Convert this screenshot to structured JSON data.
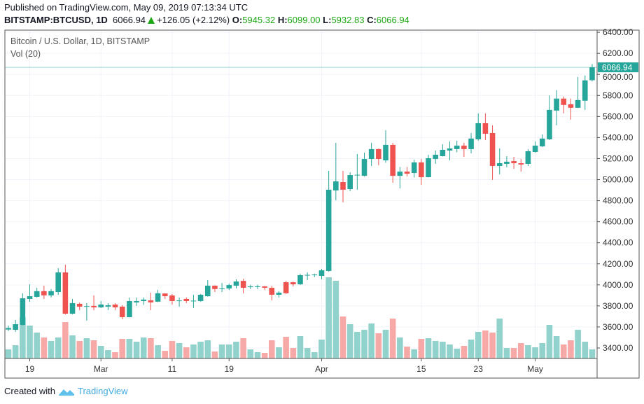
{
  "header": {
    "published": "Published on TradingView.com, May 09, 2019 07:13:34 UTC",
    "symbol": "BITSTAMP:BTCUSD, 1D",
    "last": "6066.94",
    "change": "+126.05 (+2.12%)",
    "o_label": "O:",
    "o": "5945.32",
    "h_label": "H:",
    "h": "6099.00",
    "l_label": "L:",
    "l": "5932.83",
    "c_label": "C:",
    "c": "6066.94"
  },
  "legend": {
    "series": "Bitcoin / U.S. Dollar, 1D, BITSTAMP",
    "volume": "Vol (20)"
  },
  "footer": {
    "created_with": "Created with",
    "brand": "TradingView"
  },
  "colors": {
    "up": "#26a69a",
    "down": "#ef5350",
    "vol_up": "#92d2cc",
    "vol_down": "#f7a9a7",
    "last_price": "#26a69a",
    "grid": "#f0f3fa"
  },
  "chart_data": {
    "type": "candlestick",
    "title": "Bitcoin / U.S. Dollar, 1D, BITSTAMP",
    "ylim": [
      3300,
      6450
    ],
    "grid": true,
    "last_price_label": "6066.94",
    "y_ticks": [
      "6400.00",
      "6200.00",
      "6000.00",
      "5800.00",
      "5600.00",
      "5400.00",
      "5200.00",
      "5000.00",
      "4800.00",
      "4600.00",
      "4400.00",
      "4200.00",
      "4000.00",
      "3800.00",
      "3600.00",
      "3400.00"
    ],
    "x_ticks": [
      {
        "label": "19",
        "date": "2019-02-19"
      },
      {
        "label": "Mar",
        "date": "2019-03-01"
      },
      {
        "label": "11",
        "date": "2019-03-11"
      },
      {
        "label": "19",
        "date": "2019-03-19"
      },
      {
        "label": "Apr",
        "date": "2019-04-01"
      },
      {
        "label": "15",
        "date": "2019-04-15"
      },
      {
        "label": "23",
        "date": "2019-04-23"
      },
      {
        "label": "May",
        "date": "2019-05-01"
      }
    ],
    "dates": [
      "2019-02-16",
      "2019-02-17",
      "2019-02-18",
      "2019-02-19",
      "2019-02-20",
      "2019-02-21",
      "2019-02-22",
      "2019-02-23",
      "2019-02-24",
      "2019-02-25",
      "2019-02-26",
      "2019-02-27",
      "2019-02-28",
      "2019-03-01",
      "2019-03-02",
      "2019-03-03",
      "2019-03-04",
      "2019-03-05",
      "2019-03-06",
      "2019-03-07",
      "2019-03-08",
      "2019-03-09",
      "2019-03-10",
      "2019-03-11",
      "2019-03-12",
      "2019-03-13",
      "2019-03-14",
      "2019-03-15",
      "2019-03-16",
      "2019-03-17",
      "2019-03-18",
      "2019-03-19",
      "2019-03-20",
      "2019-03-21",
      "2019-03-22",
      "2019-03-23",
      "2019-03-24",
      "2019-03-25",
      "2019-03-26",
      "2019-03-27",
      "2019-03-28",
      "2019-03-29",
      "2019-03-30",
      "2019-03-31",
      "2019-04-01",
      "2019-04-02",
      "2019-04-03",
      "2019-04-04",
      "2019-04-05",
      "2019-04-06",
      "2019-04-07",
      "2019-04-08",
      "2019-04-09",
      "2019-04-10",
      "2019-04-11",
      "2019-04-12",
      "2019-04-13",
      "2019-04-14",
      "2019-04-15",
      "2019-04-16",
      "2019-04-17",
      "2019-04-18",
      "2019-04-19",
      "2019-04-20",
      "2019-04-21",
      "2019-04-22",
      "2019-04-23",
      "2019-04-24",
      "2019-04-25",
      "2019-04-26",
      "2019-04-27",
      "2019-04-28",
      "2019-04-29",
      "2019-04-30",
      "2019-05-01",
      "2019-05-02",
      "2019-05-03",
      "2019-05-04",
      "2019-05-05",
      "2019-05-06",
      "2019-05-07",
      "2019-05-08",
      "2019-05-09"
    ],
    "ohlc": [
      [
        3575,
        3613,
        3560,
        3590
      ],
      [
        3573,
        3666,
        3553,
        3626
      ],
      [
        3620,
        3920,
        3615,
        3872
      ],
      [
        3866,
        4005,
        3840,
        3892
      ],
      [
        3886,
        3972,
        3880,
        3940
      ],
      [
        3940,
        3992,
        3866,
        3900
      ],
      [
        3900,
        3960,
        3880,
        3940
      ],
      [
        3932,
        4158,
        3905,
        4118
      ],
      [
        4118,
        4192,
        3719,
        3726
      ],
      [
        3726,
        3866,
        3720,
        3826
      ],
      [
        3820,
        3832,
        3760,
        3793
      ],
      [
        3793,
        3826,
        3660,
        3798
      ],
      [
        3800,
        3900,
        3760,
        3786
      ],
      [
        3786,
        3846,
        3780,
        3813
      ],
      [
        3793,
        3826,
        3760,
        3806
      ],
      [
        3813,
        3826,
        3760,
        3786
      ],
      [
        3793,
        3806,
        3673,
        3693
      ],
      [
        3693,
        3880,
        3690,
        3846
      ],
      [
        3833,
        3880,
        3800,
        3846
      ],
      [
        3846,
        3880,
        3810,
        3860
      ],
      [
        3853,
        3926,
        3760,
        3833
      ],
      [
        3840,
        3952,
        3835,
        3920
      ],
      [
        3918,
        3920,
        3866,
        3892
      ],
      [
        3899,
        3912,
        3812,
        3846
      ],
      [
        3846,
        3880,
        3793,
        3852
      ],
      [
        3866,
        3880,
        3826,
        3846
      ],
      [
        3846,
        3906,
        3780,
        3850
      ],
      [
        3846,
        3912,
        3840,
        3906
      ],
      [
        3892,
        4045,
        3888,
        3992
      ],
      [
        3992,
        3995,
        3932,
        3960
      ],
      [
        3960,
        4018,
        3932,
        3966
      ],
      [
        3966,
        4012,
        3950,
        3998
      ],
      [
        3992,
        4052,
        3966,
        4032
      ],
      [
        4038,
        4058,
        3920,
        3972
      ],
      [
        3978,
        4000,
        3960,
        3985
      ],
      [
        3985,
        4000,
        3960,
        3986
      ],
      [
        3985,
        3990,
        3950,
        3972
      ],
      [
        3972,
        3990,
        3852,
        3906
      ],
      [
        3906,
        3940,
        3880,
        3926
      ],
      [
        4025,
        4038,
        3915,
        3920
      ],
      [
        4025,
        4030,
        3985,
        4005
      ],
      [
        4005,
        4105,
        4000,
        4092
      ],
      [
        4090,
        4118,
        4045,
        4095
      ],
      [
        4095,
        4105,
        4075,
        4098
      ],
      [
        4085,
        4152,
        4052,
        4138
      ],
      [
        4132,
        5083,
        4125,
        4904
      ],
      [
        4897,
        5350,
        4804,
        4983
      ],
      [
        4977,
        5083,
        4784,
        4904
      ],
      [
        4910,
        5070,
        4890,
        5043
      ],
      [
        5040,
        5243,
        4904,
        5046
      ],
      [
        5036,
        5256,
        5030,
        5196
      ],
      [
        5196,
        5350,
        5130,
        5290
      ],
      [
        5290,
        5295,
        5136,
        5196
      ],
      [
        5183,
        5470,
        5160,
        5330
      ],
      [
        5330,
        5350,
        4970,
        5036
      ],
      [
        5036,
        5120,
        4917,
        5076
      ],
      [
        5076,
        5120,
        5030,
        5056
      ],
      [
        5063,
        5190,
        5020,
        5163
      ],
      [
        5163,
        5196,
        4950,
        5023
      ],
      [
        5023,
        5236,
        5020,
        5203
      ],
      [
        5196,
        5276,
        5150,
        5236
      ],
      [
        5223,
        5336,
        5220,
        5283
      ],
      [
        5276,
        5363,
        5183,
        5296
      ],
      [
        5290,
        5370,
        5260,
        5323
      ],
      [
        5323,
        5350,
        5216,
        5290
      ],
      [
        5290,
        5443,
        5250,
        5390
      ],
      [
        5383,
        5630,
        5370,
        5536
      ],
      [
        5536,
        5630,
        5376,
        5436
      ],
      [
        5443,
        5516,
        4997,
        5130
      ],
      [
        5130,
        5296,
        5050,
        5156
      ],
      [
        5150,
        5223,
        5116,
        5170
      ],
      [
        5176,
        5216,
        5103,
        5156
      ],
      [
        5156,
        5196,
        5076,
        5143
      ],
      [
        5150,
        5290,
        5130,
        5270
      ],
      [
        5263,
        5363,
        5256,
        5323
      ],
      [
        5316,
        5430,
        5310,
        5390
      ],
      [
        5383,
        5800,
        5376,
        5663
      ],
      [
        5656,
        5850,
        5516,
        5770
      ],
      [
        5770,
        5790,
        5630,
        5710
      ],
      [
        5716,
        5770,
        5570,
        5683
      ],
      [
        5683,
        5975,
        5680,
        5756
      ],
      [
        5750,
        5990,
        5663,
        5943
      ],
      [
        5945,
        6099,
        5933,
        6067
      ]
    ],
    "volume_relative": [
      13,
      19,
      59,
      47,
      37,
      30,
      25,
      30,
      52,
      33,
      25,
      29,
      26,
      18,
      12,
      9,
      28,
      28,
      24,
      30,
      29,
      19,
      11,
      25,
      22,
      16,
      20,
      24,
      26,
      10,
      20,
      20,
      24,
      29,
      13,
      9,
      8,
      26,
      16,
      31,
      15,
      32,
      15,
      9,
      27,
      116,
      111,
      60,
      49,
      38,
      41,
      50,
      36,
      41,
      57,
      30,
      17,
      13,
      28,
      29,
      25,
      24,
      20,
      14,
      18,
      27,
      38,
      40,
      37,
      57,
      15,
      15,
      22,
      19,
      16,
      22,
      48,
      32,
      20,
      26,
      41,
      24,
      13
    ]
  }
}
